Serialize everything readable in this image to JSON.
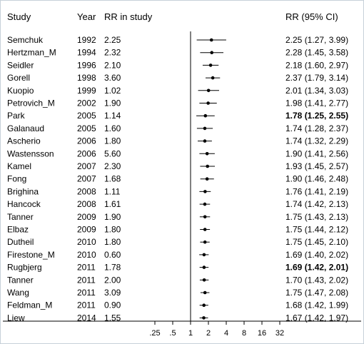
{
  "chart_data": {
    "type": "forest",
    "headers": {
      "study": "Study",
      "year": "Year",
      "rr_in_study": "RR in study",
      "rr_ci": "RR (95% CI)"
    },
    "x_scale": "log2",
    "x_ticks": [
      ".25",
      ".5",
      "1",
      "2",
      "4",
      "8",
      "16",
      "32"
    ],
    "x_tick_values": [
      0.25,
      0.5,
      1,
      2,
      4,
      8,
      16,
      32
    ],
    "reference_line": 1,
    "rows": [
      {
        "study": "Semchuk",
        "year": "1992",
        "rr_in_study": "2.25",
        "ci_text": "2.25 (1.27, 3.99)",
        "estimate": 2.25,
        "lower": 1.27,
        "upper": 3.99,
        "bold": false
      },
      {
        "study": "Hertzman_M",
        "year": "1994",
        "rr_in_study": "2.32",
        "ci_text": "2.28 (1.45, 3.58)",
        "estimate": 2.28,
        "lower": 1.45,
        "upper": 3.58,
        "bold": false
      },
      {
        "study": "Seidler",
        "year": "1996",
        "rr_in_study": "2.10",
        "ci_text": "2.18 (1.60, 2.97)",
        "estimate": 2.18,
        "lower": 1.6,
        "upper": 2.97,
        "bold": false
      },
      {
        "study": "Gorell",
        "year": "1998",
        "rr_in_study": "3.60",
        "ci_text": "2.37 (1.79, 3.14)",
        "estimate": 2.37,
        "lower": 1.79,
        "upper": 3.14,
        "bold": false
      },
      {
        "study": "Kuopio",
        "year": "1999",
        "rr_in_study": "1.02",
        "ci_text": "2.01 (1.34, 3.03)",
        "estimate": 2.01,
        "lower": 1.34,
        "upper": 3.03,
        "bold": false
      },
      {
        "study": "Petrovich_M",
        "year": "2002",
        "rr_in_study": "1.90",
        "ci_text": "1.98 (1.41, 2.77)",
        "estimate": 1.98,
        "lower": 1.41,
        "upper": 2.77,
        "bold": false
      },
      {
        "study": "Park",
        "year": "2005",
        "rr_in_study": "1.14",
        "ci_text": "1.78 (1.25, 2.55)",
        "estimate": 1.78,
        "lower": 1.25,
        "upper": 2.55,
        "bold": true
      },
      {
        "study": "Galanaud",
        "year": "2005",
        "rr_in_study": "1.60",
        "ci_text": "1.74 (1.28, 2.37)",
        "estimate": 1.74,
        "lower": 1.28,
        "upper": 2.37,
        "bold": false
      },
      {
        "study": "Ascherio",
        "year": "2006",
        "rr_in_study": "1.80",
        "ci_text": "1.74 (1.32, 2.29)",
        "estimate": 1.74,
        "lower": 1.32,
        "upper": 2.29,
        "bold": false
      },
      {
        "study": "Wastensson",
        "year": "2006",
        "rr_in_study": "5.60",
        "ci_text": "1.90 (1.41, 2.56)",
        "estimate": 1.9,
        "lower": 1.41,
        "upper": 2.56,
        "bold": false
      },
      {
        "study": "Kamel",
        "year": "2007",
        "rr_in_study": "2.30",
        "ci_text": "1.93 (1.45, 2.57)",
        "estimate": 1.93,
        "lower": 1.45,
        "upper": 2.57,
        "bold": false
      },
      {
        "study": "Fong",
        "year": "2007",
        "rr_in_study": "1.68",
        "ci_text": "1.90 (1.46, 2.48)",
        "estimate": 1.9,
        "lower": 1.46,
        "upper": 2.48,
        "bold": false
      },
      {
        "study": "Brighina",
        "year": "2008",
        "rr_in_study": "1.11",
        "ci_text": "1.76 (1.41, 2.19)",
        "estimate": 1.76,
        "lower": 1.41,
        "upper": 2.19,
        "bold": false
      },
      {
        "study": "Hancock",
        "year": "2008",
        "rr_in_study": "1.61",
        "ci_text": "1.74 (1.42, 2.13)",
        "estimate": 1.74,
        "lower": 1.42,
        "upper": 2.13,
        "bold": false
      },
      {
        "study": "Tanner",
        "year": "2009",
        "rr_in_study": "1.90",
        "ci_text": "1.75 (1.43, 2.13)",
        "estimate": 1.75,
        "lower": 1.43,
        "upper": 2.13,
        "bold": false
      },
      {
        "study": "Elbaz",
        "year": "2009",
        "rr_in_study": "1.80",
        "ci_text": "1.75 (1.44, 2.12)",
        "estimate": 1.75,
        "lower": 1.44,
        "upper": 2.12,
        "bold": false
      },
      {
        "study": "Dutheil",
        "year": "2010",
        "rr_in_study": "1.80",
        "ci_text": "1.75 (1.45, 2.10)",
        "estimate": 1.75,
        "lower": 1.45,
        "upper": 2.1,
        "bold": false
      },
      {
        "study": "Firestone_M",
        "year": "2010",
        "rr_in_study": "0.60",
        "ci_text": "1.69 (1.40, 2.02)",
        "estimate": 1.69,
        "lower": 1.4,
        "upper": 2.02,
        "bold": false
      },
      {
        "study": "Rugbjerg",
        "year": "2011",
        "rr_in_study": "1.78",
        "ci_text": "1.69 (1.42, 2.01)",
        "estimate": 1.69,
        "lower": 1.42,
        "upper": 2.01,
        "bold": true
      },
      {
        "study": "Tanner",
        "year": "2011",
        "rr_in_study": "2.00",
        "ci_text": "1.70 (1.43, 2.02)",
        "estimate": 1.7,
        "lower": 1.43,
        "upper": 2.02,
        "bold": false
      },
      {
        "study": "Wang",
        "year": "2011",
        "rr_in_study": "3.09",
        "ci_text": "1.75 (1.47, 2.08)",
        "estimate": 1.75,
        "lower": 1.47,
        "upper": 2.08,
        "bold": false
      },
      {
        "study": "Feldman_M",
        "year": "2011",
        "rr_in_study": "0.90",
        "ci_text": "1.68 (1.42, 1.99)",
        "estimate": 1.68,
        "lower": 1.42,
        "upper": 1.99,
        "bold": false
      },
      {
        "study": "Liew",
        "year": "2014",
        "rr_in_study": "1.55",
        "ci_text": "1.67 (1.42, 1.97)",
        "estimate": 1.67,
        "lower": 1.42,
        "upper": 1.97,
        "bold": false
      }
    ],
    "colors": {
      "background": "#ffffff",
      "frame": "#c6d0d9",
      "line": "#000000",
      "marker": "#000000"
    }
  }
}
